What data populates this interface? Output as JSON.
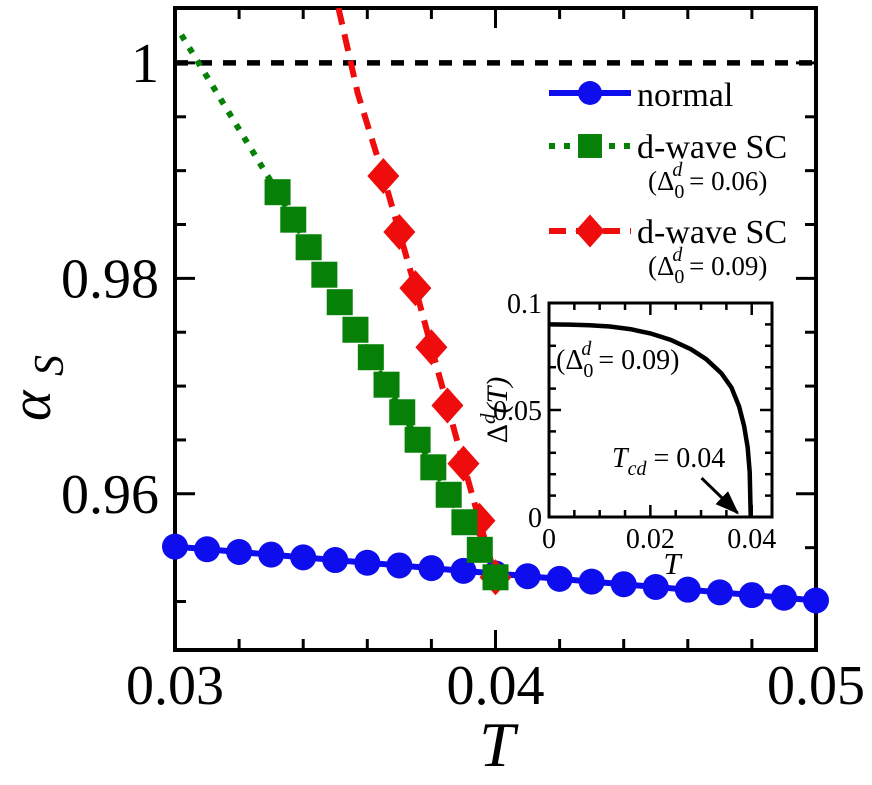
{
  "figure": {
    "background": "#ffffff",
    "foreground": "#000000",
    "description": "alpha_S versus T for normal and d-wave superconducting states, with BCS gap inset"
  },
  "chart_data": [
    {
      "id": "main",
      "type": "line",
      "title": "",
      "xlabel": "T",
      "ylabel": {
        "base": "α",
        "sub": "S"
      },
      "xlim": [
        0.03,
        0.05
      ],
      "ylim": [
        0.9455,
        1.0051
      ],
      "grid": false,
      "legend_position": "upper right",
      "x_major_ticks": [
        {
          "value": 0.03,
          "label": "0.03"
        },
        {
          "value": 0.04,
          "label": "0.04"
        },
        {
          "value": 0.05,
          "label": "0.05"
        }
      ],
      "x_minor_ticks": [
        0.032,
        0.034,
        0.036,
        0.038,
        0.042,
        0.044,
        0.046,
        0.048
      ],
      "y_major_ticks": [
        {
          "value": 1.0,
          "label": "1"
        },
        {
          "value": 0.98,
          "label": "0.98"
        },
        {
          "value": 0.96,
          "label": "0.96"
        }
      ],
      "y_minor_ticks": [
        0.995,
        0.99,
        0.985,
        0.975,
        0.97,
        0.965,
        0.955,
        0.95
      ],
      "reference_line": {
        "y": 1.0,
        "style": "dashed",
        "color": "#000000"
      },
      "series": [
        {
          "name": "normal",
          "color": "#0d0dee",
          "marker": "circle",
          "line": "solid",
          "x": [
            0.03,
            0.031,
            0.032,
            0.033,
            0.034,
            0.035,
            0.036,
            0.037,
            0.038,
            0.039,
            0.04,
            0.041,
            0.042,
            0.043,
            0.044,
            0.045,
            0.046,
            0.047,
            0.048,
            0.049,
            0.05
          ],
          "y": [
            0.9551,
            0.95485,
            0.9546,
            0.95435,
            0.9541,
            0.95385,
            0.9536,
            0.95335,
            0.9531,
            0.95285,
            0.9526,
            0.95235,
            0.9521,
            0.95185,
            0.9516,
            0.95135,
            0.9511,
            0.95085,
            0.9506,
            0.95035,
            0.9501
          ]
        },
        {
          "name": "d-wave SC",
          "sublabel": {
            "open": "(Δ",
            "sub": "0",
            "sup": "d",
            "rest": " = 0.06)"
          },
          "gap_value": 0.06,
          "color": "#068006",
          "marker": "square",
          "line": "dotted",
          "line_prefix": {
            "x": [
              0.0302
            ],
            "y": [
              1.0026
            ]
          },
          "x": [
            0.0332,
            0.03369,
            0.03417,
            0.03466,
            0.03514,
            0.03563,
            0.03611,
            0.0366,
            0.03709,
            0.03757,
            0.03806,
            0.03854,
            0.03903,
            0.03951,
            0.04
          ],
          "y": [
            0.988,
            0.98545,
            0.98289,
            0.98034,
            0.97779,
            0.97523,
            0.97268,
            0.97013,
            0.96757,
            0.96502,
            0.96246,
            0.95991,
            0.95736,
            0.9548,
            0.95225
          ]
        },
        {
          "name": "d-wave SC",
          "sublabel": {
            "open": "(Δ",
            "sub": "0",
            "sup": "d",
            "rest": " = 0.09)"
          },
          "gap_value": 0.09,
          "color": "#ee0c0c",
          "marker": "diamond",
          "line": "dashed",
          "line_prefix": {
            "x": [
              0.0351,
              0.0357
            ],
            "y": [
              1.0051,
              0.9972
            ]
          },
          "x": [
            0.0365,
            0.037,
            0.0375,
            0.038,
            0.0385,
            0.039,
            0.0395,
            0.04
          ],
          "y": [
            0.9895,
            0.9843,
            0.9791,
            0.9736,
            0.9682,
            0.9628,
            0.9575,
            0.95225
          ]
        }
      ]
    },
    {
      "id": "inset",
      "type": "line",
      "title": "",
      "xlabel": "T",
      "ylabel": {
        "base": "Δ",
        "sup": "d",
        "rest": "(T)"
      },
      "xlim": [
        0,
        0.044
      ],
      "ylim": [
        0,
        0.1
      ],
      "grid": false,
      "x_major_ticks": [
        {
          "value": 0,
          "label": "0"
        },
        {
          "value": 0.02,
          "label": "0.02"
        },
        {
          "value": 0.04,
          "label": "0.04"
        }
      ],
      "x_minor_ticks": [
        0.005,
        0.01,
        0.015,
        0.025,
        0.03,
        0.035
      ],
      "y_major_ticks": [
        {
          "value": 0.1,
          "label": "0.1"
        },
        {
          "value": 0.05,
          "label": "0.05"
        },
        {
          "value": 0,
          "label": "0"
        }
      ],
      "y_minor_ticks": [
        0.01,
        0.02,
        0.03,
        0.04,
        0.06,
        0.07,
        0.08,
        0.09
      ],
      "curve": {
        "color": "#000000",
        "x": [
          0,
          0.004,
          0.008,
          0.012,
          0.016,
          0.02,
          0.024,
          0.028,
          0.031,
          0.034,
          0.036,
          0.0375,
          0.0385,
          0.0392,
          0.0396,
          0.0398
        ],
        "y": [
          0.09,
          0.0899,
          0.0896,
          0.089,
          0.0878,
          0.0858,
          0.0828,
          0.0784,
          0.0738,
          0.0672,
          0.0605,
          0.0517,
          0.0425,
          0.0325,
          0.021,
          0
        ]
      },
      "annotations": {
        "delta_label": {
          "open": "(Δ",
          "sub": "0",
          "sup": "d",
          "rest": " = 0.09)"
        },
        "tc_label": {
          "base": "T",
          "sub": "cd",
          "rest": " = 0.04"
        },
        "tc_value": 0.04,
        "arrow": {
          "from": [
            0.0301,
            0.0182
          ],
          "to": [
            0.0372,
            0.0019
          ],
          "color": "#000000"
        }
      }
    }
  ]
}
